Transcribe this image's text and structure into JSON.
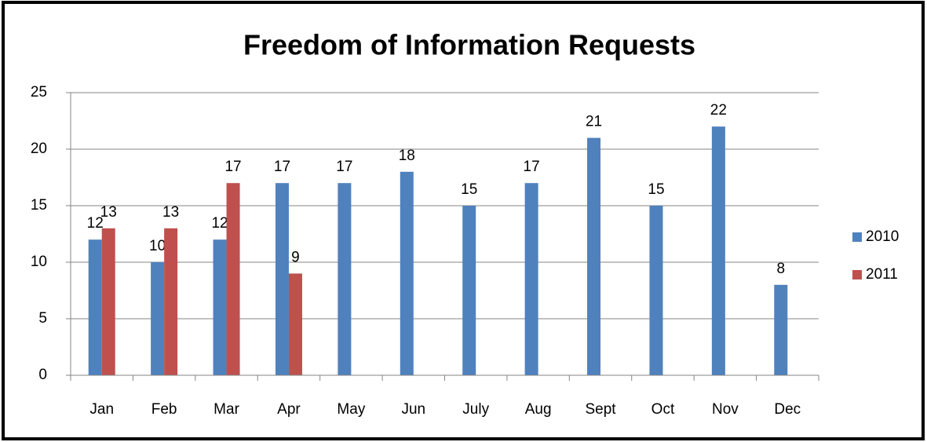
{
  "chart_data": {
    "type": "bar",
    "title": "Freedom of Information Requests",
    "categories": [
      "Jan",
      "Feb",
      "Mar",
      "Apr",
      "May",
      "Jun",
      "July",
      "Aug",
      "Sept",
      "Oct",
      "Nov",
      "Dec"
    ],
    "series": [
      {
        "name": "2010",
        "color": "#4f81bd",
        "values": [
          12,
          10,
          12,
          17,
          17,
          18,
          15,
          17,
          21,
          15,
          22,
          8
        ]
      },
      {
        "name": "2011",
        "color": "#c0504d",
        "values": [
          13,
          13,
          17,
          9,
          null,
          null,
          null,
          null,
          null,
          null,
          null,
          null
        ]
      }
    ],
    "ylim": [
      0,
      25
    ],
    "yticks": [
      0,
      5,
      10,
      15,
      20,
      25
    ],
    "grid": true,
    "legend": "right"
  }
}
